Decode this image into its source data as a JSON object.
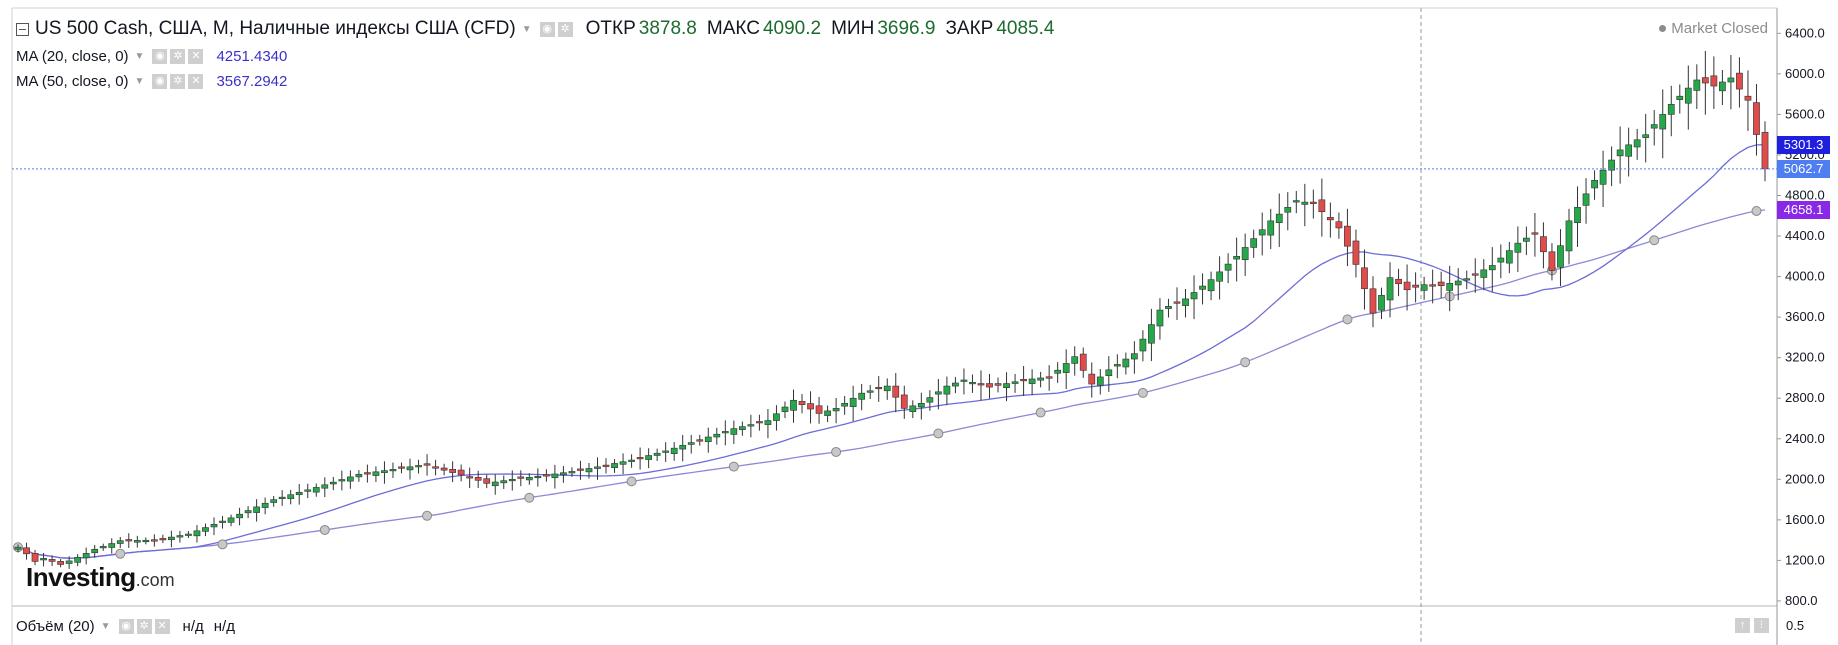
{
  "header": {
    "symbol_title": "US 500 Cash, США, M, Наличные индексы США (CFD)",
    "ohlc": [
      {
        "label": "ОТКР",
        "value": "3878.8"
      },
      {
        "label": "МАКС",
        "value": "4090.2"
      },
      {
        "label": "МИН",
        "value": "3696.9"
      },
      {
        "label": "ЗАКР",
        "value": "4085.4"
      }
    ],
    "market_status": "Market Closed"
  },
  "indicators": {
    "ma20": {
      "label": "MA (20, close, 0)",
      "value": "4251.4340"
    },
    "ma50": {
      "label": "MA (50, close, 0)",
      "value": "3567.2942"
    }
  },
  "volume_pane": {
    "label": "Объём (20)",
    "value1": "н/д",
    "value2": "н/д",
    "axis_label": "0.5"
  },
  "price_tags": {
    "ma20": "5301.3",
    "last": "5062.7",
    "ma50": "4658.1"
  },
  "logo": {
    "main": "Investing",
    "sub": ".com"
  },
  "icons": {
    "collapse": "collapse-icon",
    "settings": "gear-icon",
    "visibility": "eye-icon",
    "remove": "close-icon",
    "corner_up": "arrow-up-icon",
    "corner_settings": "settings-icon"
  },
  "colors": {
    "up": "#26a84a",
    "down": "#e04b4b",
    "ma20": "#6c6cd8",
    "ma50": "#8e88d6",
    "ma20_tag": "#1f1fe0",
    "last_tag": "#4f7df2",
    "ma50_tag": "#8a28e8"
  },
  "chart_data": {
    "type": "candlestick",
    "timeframe": "M",
    "y_ticks": [
      "6400.0",
      "6000.0",
      "5600.0",
      "5200.0",
      "4800.0",
      "4400.0",
      "4000.0",
      "3600.0",
      "3200.0",
      "2800.0",
      "2400.0",
      "2000.0",
      "1600.0",
      "1200.0",
      "800.0"
    ],
    "ylim": [
      760,
      6650
    ],
    "last_price": 5062.7,
    "close_anchors": [
      [
        0,
        1330
      ],
      [
        1,
        1265
      ],
      [
        2,
        1190
      ],
      [
        3,
        1220
      ],
      [
        5,
        1160
      ],
      [
        7,
        1230
      ],
      [
        9,
        1310
      ],
      [
        12,
        1395
      ],
      [
        16,
        1400
      ],
      [
        20,
        1460
      ],
      [
        25,
        1620
      ],
      [
        30,
        1800
      ],
      [
        35,
        1920
      ],
      [
        40,
        2050
      ],
      [
        45,
        2110
      ],
      [
        48,
        2150
      ],
      [
        50,
        2090
      ],
      [
        53,
        2020
      ],
      [
        55,
        1960
      ],
      [
        58,
        2000
      ],
      [
        62,
        2040
      ],
      [
        66,
        2090
      ],
      [
        72,
        2190
      ],
      [
        76,
        2280
      ],
      [
        80,
        2390
      ],
      [
        84,
        2500
      ],
      [
        88,
        2580
      ],
      [
        91,
        2780
      ],
      [
        94,
        2650
      ],
      [
        96,
        2700
      ],
      [
        99,
        2850
      ],
      [
        102,
        2920
      ],
      [
        104,
        2700
      ],
      [
        106,
        2750
      ],
      [
        109,
        2920
      ],
      [
        111,
        2980
      ],
      [
        114,
        2910
      ],
      [
        118,
        2980
      ],
      [
        121,
        3010
      ],
      [
        124,
        3210
      ],
      [
        126,
        2940
      ],
      [
        128,
        3080
      ],
      [
        131,
        3240
      ],
      [
        134,
        3670
      ],
      [
        137,
        3780
      ],
      [
        140,
        3970
      ],
      [
        143,
        4200
      ],
      [
        147,
        4550
      ],
      [
        150,
        4750
      ],
      [
        152,
        4720
      ],
      [
        155,
        4480
      ],
      [
        157,
        4120
      ],
      [
        159,
        3640
      ],
      [
        161,
        3990
      ],
      [
        163,
        3870
      ],
      [
        165,
        3920
      ],
      [
        167,
        3910
      ],
      [
        170,
        3980
      ],
      [
        173,
        4110
      ],
      [
        176,
        4330
      ],
      [
        178,
        4430
      ],
      [
        180,
        4060
      ],
      [
        182,
        4550
      ],
      [
        185,
        4950
      ],
      [
        188,
        5250
      ],
      [
        191,
        5400
      ],
      [
        194,
        5700
      ],
      [
        197,
        5940
      ],
      [
        199,
        5880
      ],
      [
        201,
        5960
      ],
      [
        203,
        5740
      ],
      [
        205,
        5062.7
      ]
    ],
    "ma20_last": 5301.3,
    "ma50_last": 4658.1,
    "series": [
      {
        "name": "MA (20, close, 0)",
        "type": "line",
        "last_value": 4251.434
      },
      {
        "name": "MA (50, close, 0)",
        "type": "line",
        "last_value": 3567.2942
      }
    ]
  }
}
